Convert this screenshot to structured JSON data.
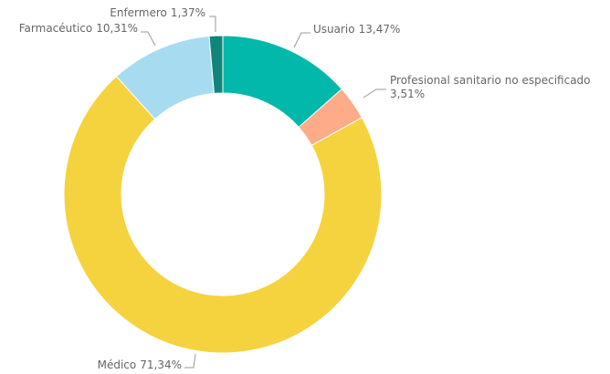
{
  "chart_data": {
    "type": "donut",
    "categories": [
      "Usuario",
      "Profesional sanitario no especificado",
      "Médico",
      "Farmacéutico",
      "Enfermero"
    ],
    "values": [
      13.47,
      3.51,
      71.34,
      10.31,
      1.37
    ],
    "value_labels": [
      "13,47%",
      "3,51%",
      "71,34%",
      "10,31%",
      "1,37%"
    ],
    "colors": [
      "#01b8aa",
      "#fdab89",
      "#f5d33f",
      "#a7dcf0",
      "#10857b"
    ]
  }
}
